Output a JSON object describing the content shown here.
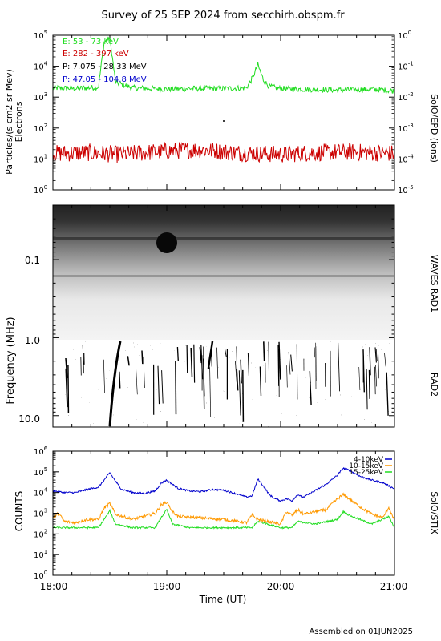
{
  "title": "Survey of 25 SEP 2024 from secchirh.obspm.fr",
  "footer": "Assembled on 01JUN2025",
  "colors": {
    "green": "#22dd22",
    "red": "#cc0000",
    "blue": "#0000cc",
    "orange": "#ff9900",
    "black": "#000000"
  },
  "chart_data": [
    {
      "type": "line",
      "panel": "SolO/EPD",
      "right_label": "SolO/EPD (ions)",
      "ylabel_left": "Particles/(s cm2 sr Mev)",
      "ylabel_left2": "Electrons",
      "yscale": "log",
      "ylim": [
        1,
        100000
      ],
      "y_ticks": [
        "10^0",
        "10^1",
        "10^2",
        "10^3",
        "10^4",
        "10^5"
      ],
      "y2lim": [
        1e-05,
        1
      ],
      "y2_ticks": [
        "10^-5",
        "10^-4",
        "10^-3",
        "10^-2",
        "10^-1",
        "10^0"
      ],
      "legend": [
        {
          "label": "E: 53 - 73 keV",
          "color": "#22dd22"
        },
        {
          "label": "E: 282 - 397 keV",
          "color": "#cc0000"
        },
        {
          "label": "P: 7.075 - 28.33 MeV",
          "color": "#000000"
        },
        {
          "label": "P: 47.05 - 104.8 MeV",
          "color": "#0000cc"
        }
      ],
      "series": [
        {
          "name": "E: 53 - 73 keV",
          "color": "#22dd22",
          "x_hours": [
            18.0,
            18.2,
            18.4,
            18.45,
            18.5,
            18.55,
            18.7,
            19.0,
            19.2,
            19.5,
            19.7,
            19.75,
            19.8,
            19.85,
            19.9,
            20.0,
            20.2,
            20.5,
            20.8,
            21.0
          ],
          "values": [
            2000,
            1900,
            2100,
            60000,
            80000,
            3000,
            2000,
            1800,
            1900,
            1900,
            2000,
            4000,
            11000,
            3500,
            2200,
            1900,
            1800,
            1700,
            1800,
            1600
          ]
        },
        {
          "name": "E: 282 - 397 keV",
          "color": "#cc0000",
          "x_hours": [
            18.0,
            18.3,
            18.6,
            19.0,
            19.3,
            19.6,
            20.0,
            20.3,
            20.6,
            21.0
          ],
          "values": [
            15,
            16,
            14,
            18,
            20,
            16,
            14,
            16,
            17,
            15
          ]
        }
      ]
    },
    {
      "type": "heatmap",
      "panel": "WAVES RAD1 / RAD2",
      "right_label_top": "WAVES RAD1",
      "right_label_bottom": "RAD2",
      "ylabel": "Frequency (MHz)",
      "y_ticks": [
        "0.1",
        "1.0",
        "10.0"
      ],
      "yscale": "log",
      "ylim_mhz": [
        0.02,
        14
      ],
      "y_inverted": true
    },
    {
      "type": "line",
      "panel": "SolO/STIX",
      "right_label": "SolO/STIX",
      "ylabel": "COUNTS",
      "xlabel": "Time (UT)",
      "x_ticks": [
        "18:00",
        "19:00",
        "20:00",
        "21:00"
      ],
      "xlim_hours": [
        18,
        21
      ],
      "yscale": "log",
      "ylim": [
        1,
        1000000
      ],
      "y_ticks": [
        "10^0",
        "10^1",
        "10^2",
        "10^3",
        "10^4",
        "10^5",
        "10^6"
      ],
      "legend": [
        {
          "label": "4-10keV",
          "color": "#0000cc"
        },
        {
          "label": "10-15keV",
          "color": "#ff9900"
        },
        {
          "label": "15-25keV",
          "color": "#22dd22"
        }
      ],
      "series": [
        {
          "name": "4-10keV",
          "color": "#0000cc",
          "x_hours": [
            18.0,
            18.1,
            18.2,
            18.3,
            18.4,
            18.45,
            18.5,
            18.55,
            18.6,
            18.7,
            18.8,
            18.9,
            18.95,
            19.0,
            19.05,
            19.1,
            19.2,
            19.3,
            19.4,
            19.5,
            19.6,
            19.7,
            19.75,
            19.8,
            19.85,
            19.9,
            19.95,
            20.0,
            20.05,
            20.1,
            20.15,
            20.2,
            20.3,
            20.4,
            20.5,
            20.55,
            20.6,
            20.7,
            20.8,
            20.9,
            21.0
          ],
          "values": [
            12000,
            10000,
            10000,
            14000,
            18000,
            40000,
            90000,
            35000,
            15000,
            10000,
            9000,
            12000,
            28000,
            40000,
            25000,
            16000,
            12000,
            11000,
            14000,
            13000,
            9000,
            6000,
            7000,
            45000,
            20000,
            8000,
            5000,
            4000,
            5000,
            4000,
            8000,
            6000,
            12000,
            25000,
            70000,
            150000,
            120000,
            60000,
            40000,
            30000,
            15000
          ]
        },
        {
          "name": "10-15keV",
          "color": "#ff9900",
          "x_hours": [
            18.0,
            18.05,
            18.1,
            18.2,
            18.3,
            18.4,
            18.45,
            18.5,
            18.55,
            18.7,
            18.9,
            18.95,
            19.0,
            19.05,
            19.1,
            19.3,
            19.5,
            19.7,
            19.75,
            19.8,
            20.0,
            20.05,
            20.1,
            20.15,
            20.2,
            20.4,
            20.5,
            20.55,
            20.6,
            20.7,
            20.8,
            20.9,
            20.95,
            21.0
          ],
          "values": [
            600,
            1000,
            400,
            350,
            500,
            500,
            1800,
            3000,
            900,
            500,
            1000,
            2500,
            3500,
            1200,
            700,
            600,
            500,
            350,
            800,
            500,
            300,
            1200,
            800,
            1500,
            900,
            1500,
            5000,
            8000,
            5000,
            2000,
            900,
            600,
            2000,
            400
          ]
        },
        {
          "name": "15-25keV",
          "color": "#22dd22",
          "x_hours": [
            18.0,
            18.2,
            18.4,
            18.45,
            18.5,
            18.55,
            18.7,
            18.9,
            18.95,
            19.0,
            19.05,
            19.2,
            19.5,
            19.75,
            19.8,
            20.0,
            20.1,
            20.15,
            20.3,
            20.5,
            20.55,
            20.6,
            20.8,
            20.95,
            21.0
          ],
          "values": [
            200,
            200,
            200,
            500,
            1300,
            300,
            200,
            200,
            600,
            1500,
            300,
            200,
            200,
            200,
            400,
            200,
            200,
            400,
            300,
            500,
            1200,
            800,
            300,
            700,
            200
          ]
        }
      ]
    }
  ]
}
